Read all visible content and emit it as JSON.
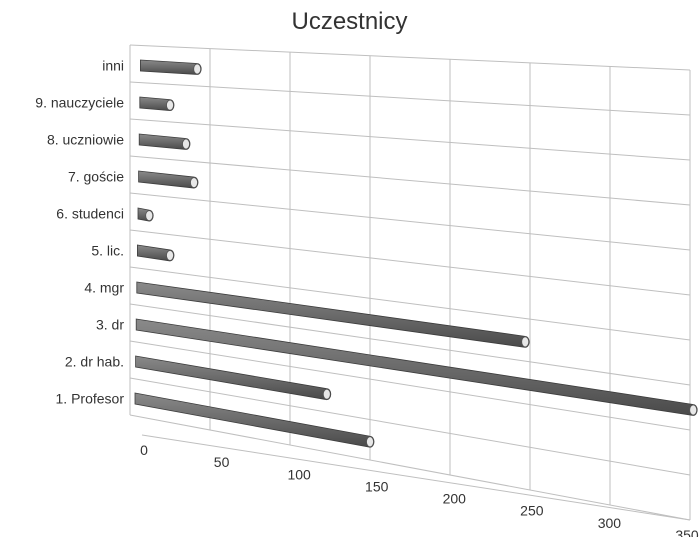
{
  "chart_data": {
    "type": "bar",
    "orientation": "horizontal",
    "title": "Uczestnicy",
    "xlabel": "",
    "ylabel": "",
    "categories": [
      "1. Profesor",
      "2. dr hab.",
      "3. dr",
      "4. mgr",
      "5. lic.",
      "6. studenci",
      "7. goście",
      "8. uczniowie",
      "9. nauczyciele",
      "inni"
    ],
    "values": [
      150,
      123,
      352,
      247,
      25,
      12,
      40,
      35,
      25,
      42
    ],
    "xlim": [
      0,
      350
    ],
    "xticks": [
      0,
      50,
      100,
      150,
      200,
      250,
      300,
      350
    ],
    "grid": true,
    "legend": "none",
    "bar_color": "#6e6e6e",
    "grid_color": "#bfbfbf"
  }
}
